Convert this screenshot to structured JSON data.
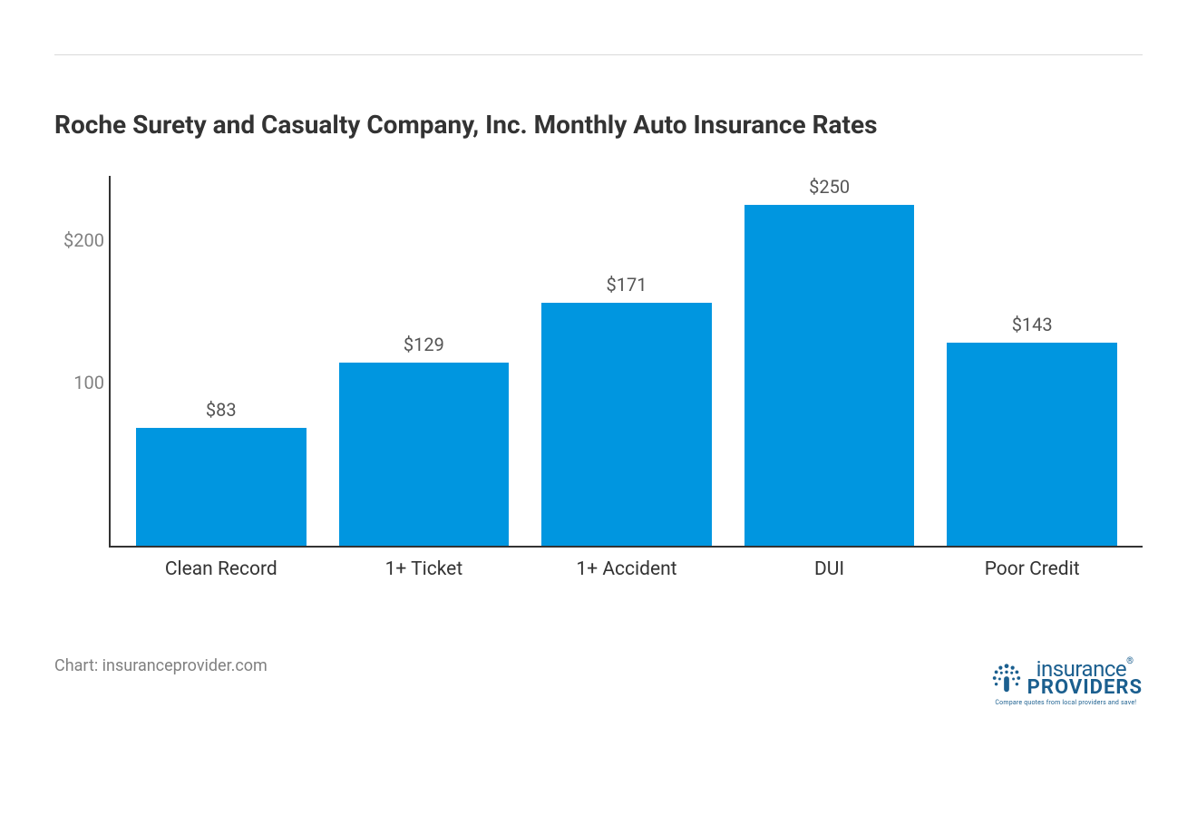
{
  "chart": {
    "type": "bar",
    "title": "Roche Surety and Casualty Company, Inc. Monthly Auto Insurance Rates",
    "title_fontsize": 28,
    "title_color": "#333333",
    "categories": [
      "Clean Record",
      "1+ Ticket",
      "1+ Accident",
      "DUI",
      "Poor Credit"
    ],
    "values": [
      83,
      129,
      171,
      250,
      143
    ],
    "value_labels": [
      "$83",
      "$129",
      "$171",
      "$250",
      "$143"
    ],
    "bar_color": "#0096e0",
    "y_ticks": [
      {
        "value": 100,
        "label": "100"
      },
      {
        "value": 200,
        "label": "$200"
      }
    ],
    "y_max": 260,
    "y_min": 0,
    "axis_color": "#333333",
    "tick_color": "#808080",
    "x_label_color": "#333333",
    "value_label_color": "#555555",
    "background_color": "#ffffff",
    "x_label_fontsize": 21,
    "value_label_fontsize": 20,
    "tick_fontsize": 20
  },
  "footer": {
    "source": "Chart: insuranceprovider.com",
    "logo_top": "insurance",
    "logo_bottom": "PROVIDERS",
    "logo_tag": "Compare quotes from local providers and save!",
    "logo_color": "#1b5f8f"
  }
}
